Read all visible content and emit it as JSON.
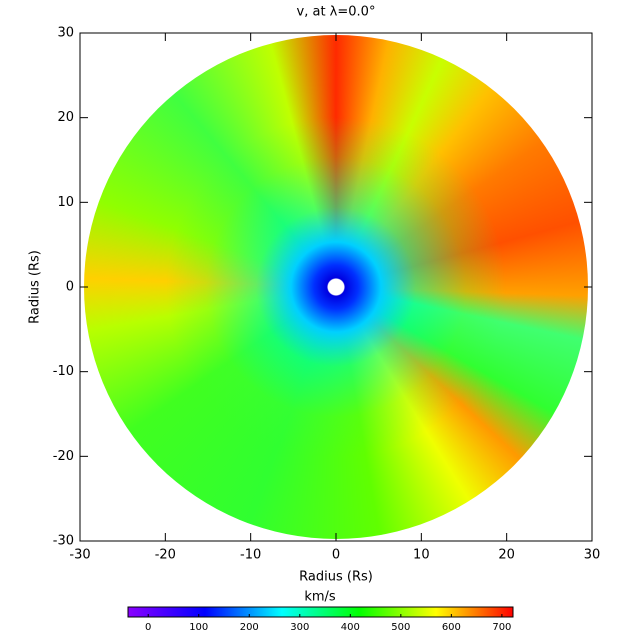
{
  "chart_data": {
    "type": "map",
    "title": "v, at λ=0.0°",
    "x_label": "Radius (Rs)",
    "y_label": "Radius (Rs)",
    "xlim": [
      -30,
      30
    ],
    "ylim": [
      -30,
      30
    ],
    "xticks": [
      -30,
      -20,
      -10,
      0,
      10,
      20,
      30
    ],
    "yticks": [
      -30,
      -20,
      -10,
      0,
      10,
      20,
      30
    ],
    "colorbar": {
      "label": "km/s",
      "lim": [
        -40,
        722
      ],
      "ticks": [
        0,
        100,
        200,
        300,
        400,
        500,
        600,
        700
      ],
      "colors": [
        "#8a00ff",
        "#0000ff",
        "#00ffff",
        "#00ff00",
        "#ffff00",
        "#ff0000"
      ]
    }
  }
}
